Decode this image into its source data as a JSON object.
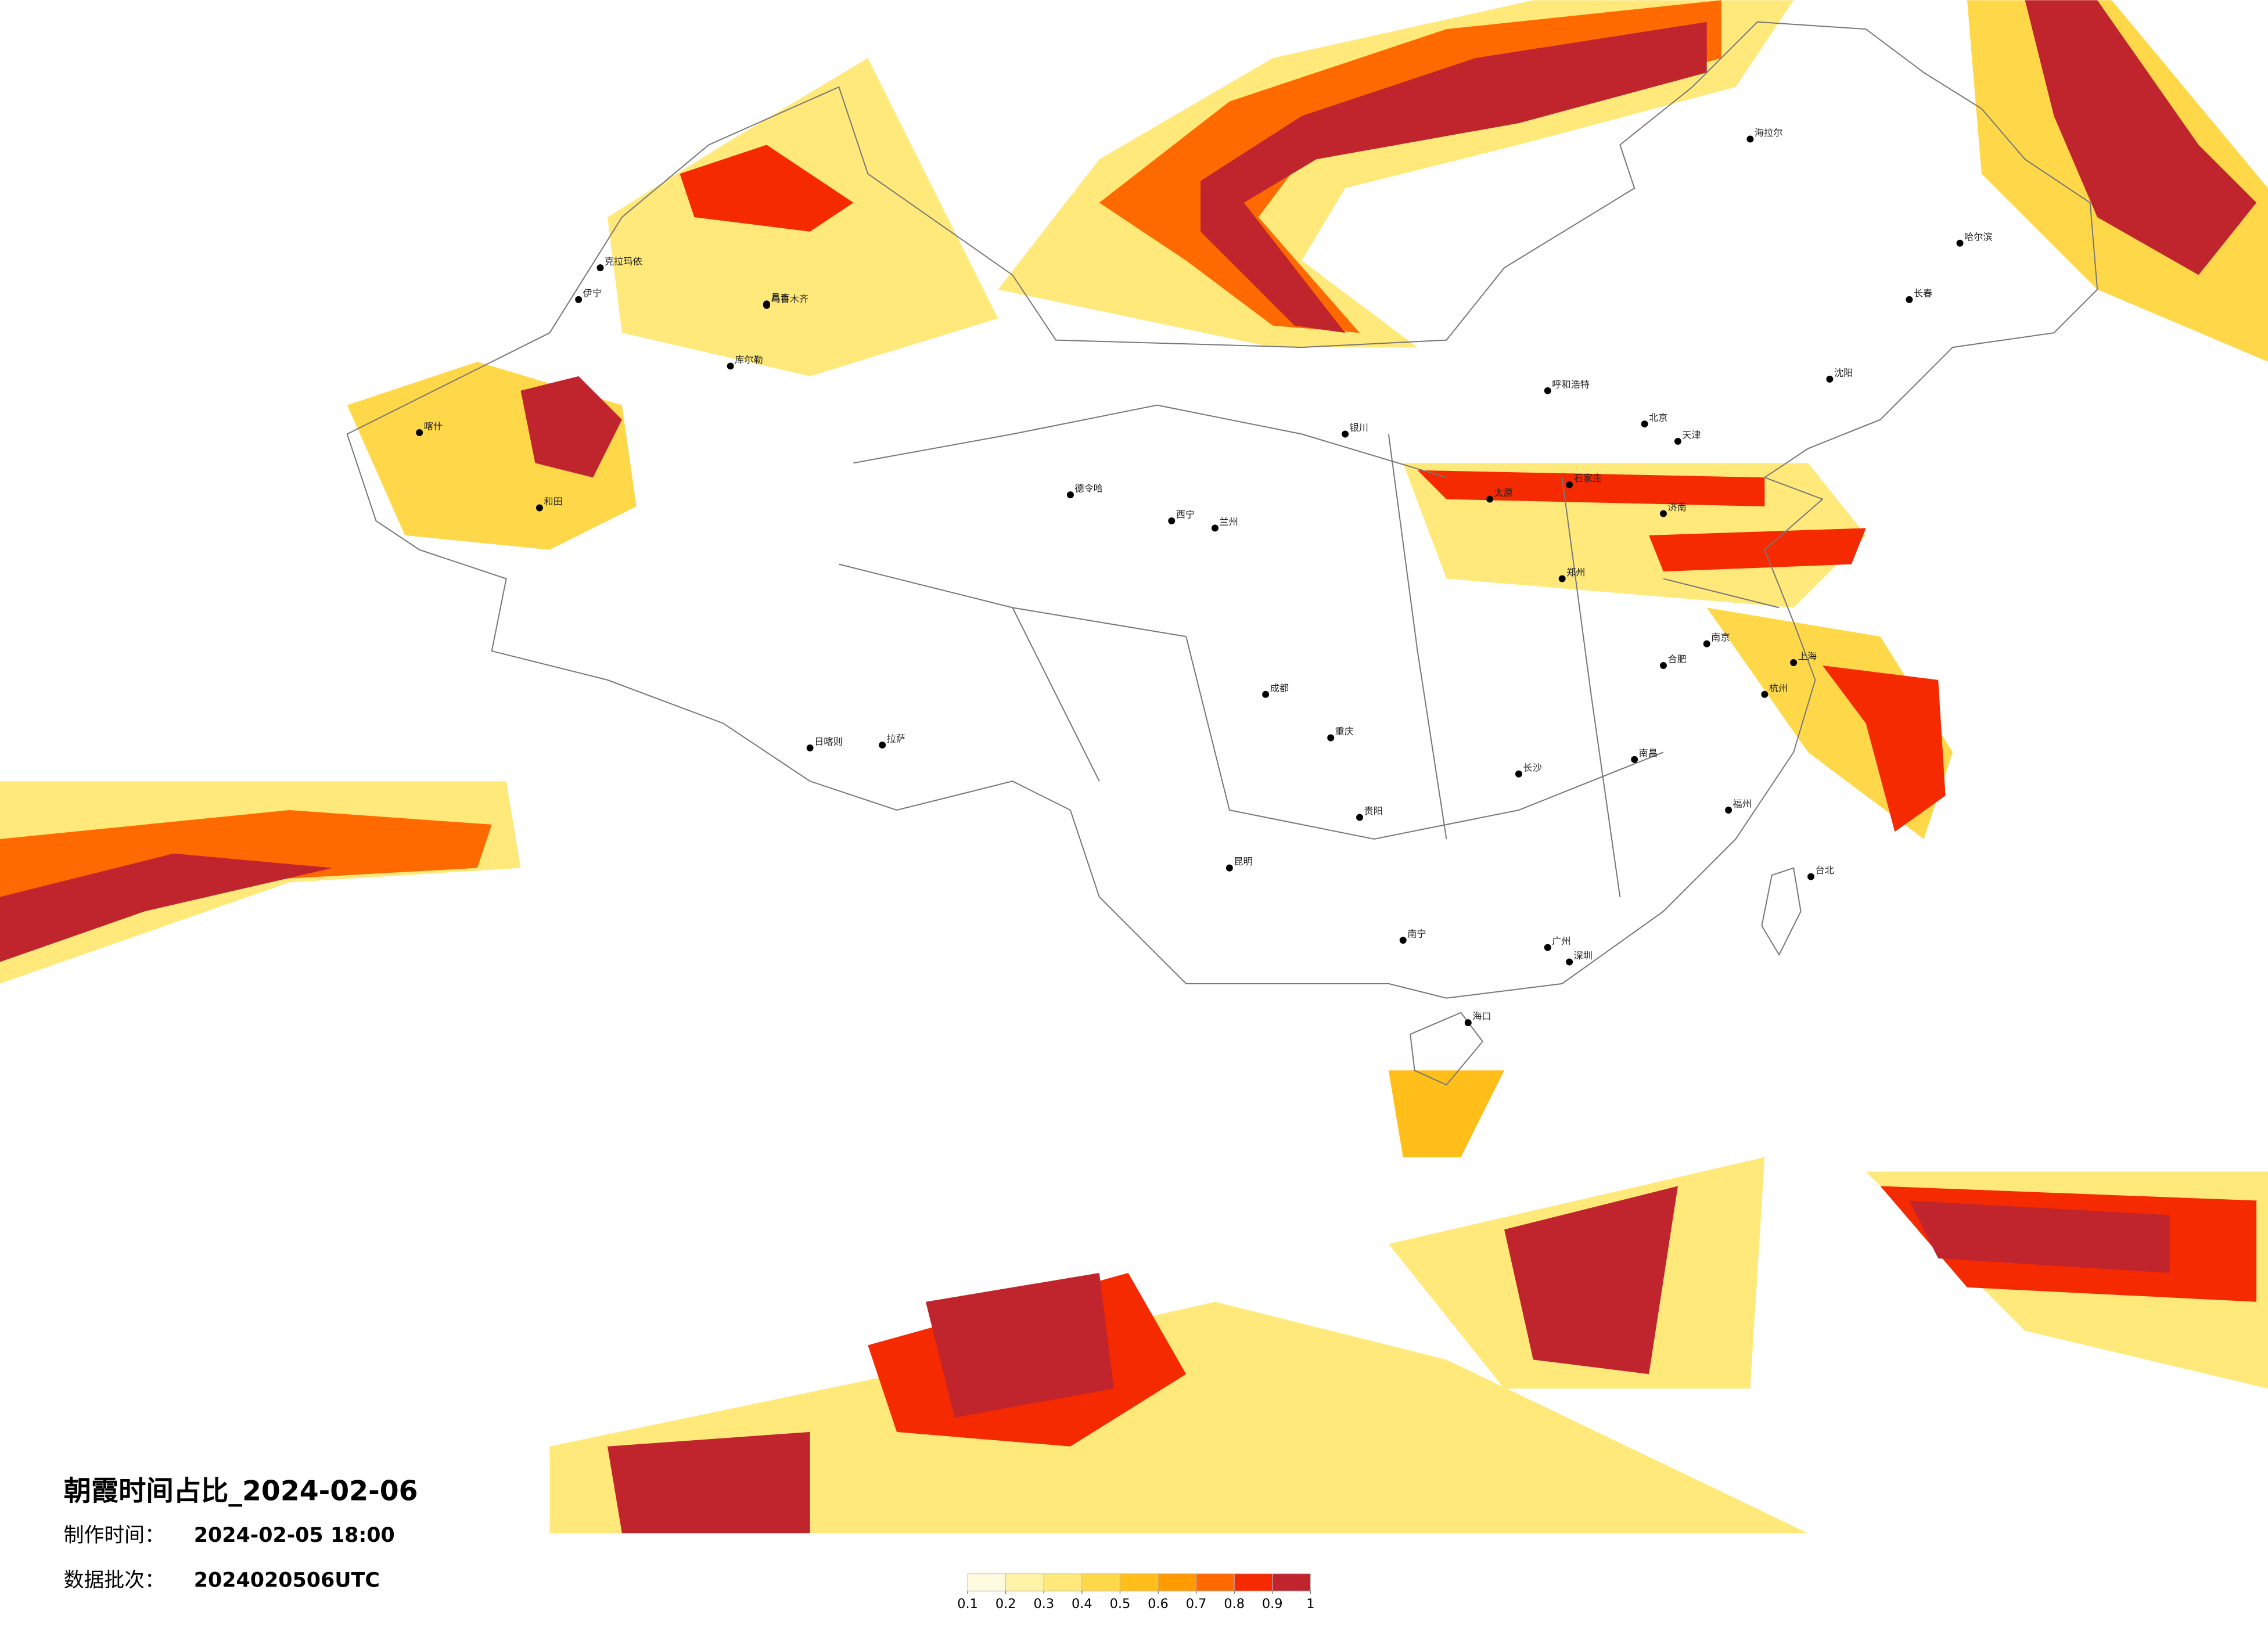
{
  "header": {
    "title": "朝霞时间占比_2024-02-06",
    "made_label": "制作时间：",
    "made_value": "2024-02-05 18:00",
    "batch_label": "数据批次：",
    "batch_value": "2024020506UTC"
  },
  "colorbar": {
    "ticks": [
      0.1,
      0.2,
      0.3,
      0.4,
      0.5,
      0.6,
      0.7,
      0.8,
      0.9,
      1
    ],
    "colors": [
      "#fffbe0",
      "#fff3a8",
      "#ffe97a",
      "#ffd84a",
      "#ffbe1a",
      "#ff9a00",
      "#ff6a00",
      "#f52a00",
      "#c0242d"
    ]
  },
  "cities": [
    "北京",
    "天津",
    "上海",
    "广州",
    "深圳",
    "成都",
    "重庆",
    "乌鲁木齐",
    "拉萨",
    "日喀则",
    "喀什",
    "和田",
    "哈尔滨",
    "长春",
    "沈阳",
    "呼和浩特",
    "海拉尔",
    "银川",
    "兰州",
    "西宁",
    "德令哈",
    "昆明",
    "贵阳",
    "南宁",
    "海口",
    "台北",
    "福州",
    "杭州",
    "南京",
    "济南",
    "郑州",
    "长沙",
    "南昌",
    "合肥",
    "太原",
    "石家庄",
    "伊宁",
    "昌吉",
    "库尔勒",
    "克拉玛依"
  ]
}
